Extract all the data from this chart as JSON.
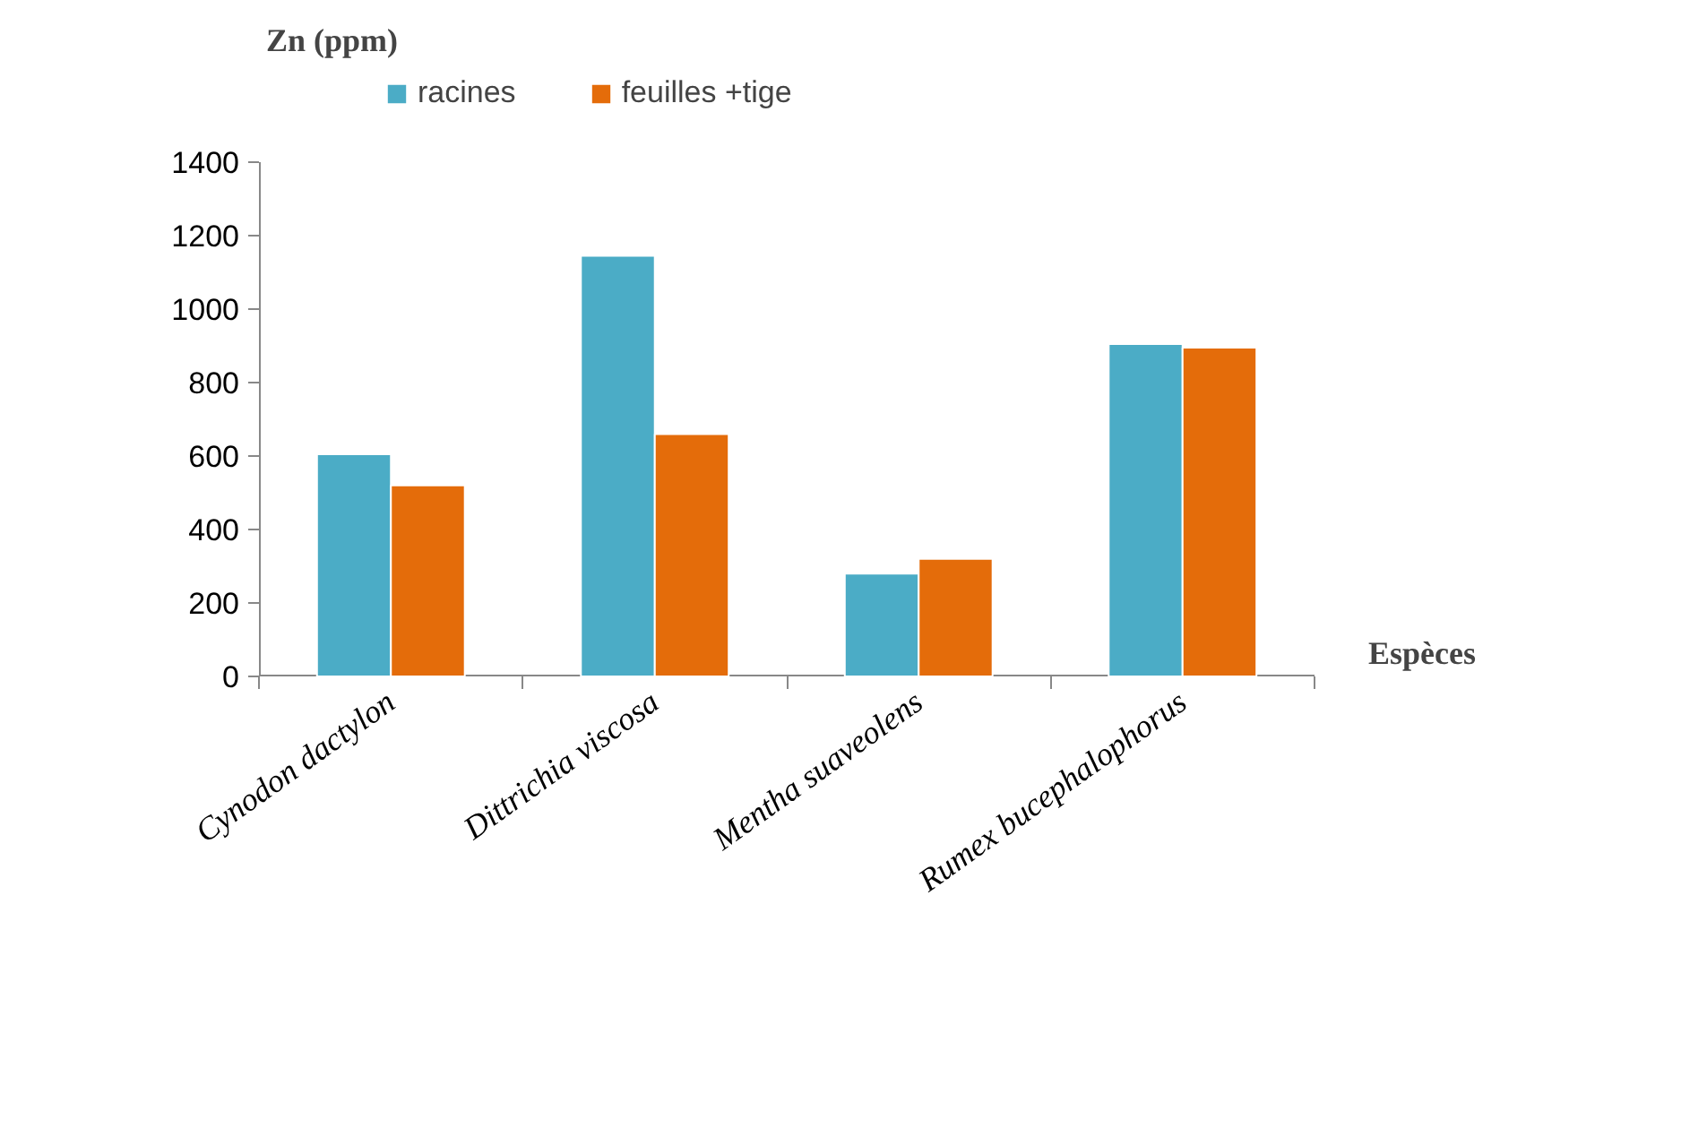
{
  "chart_data": {
    "type": "bar",
    "ylabel": "Zn (ppm)",
    "xlabel": "Espèces",
    "categories": [
      "Cynodon dactylon",
      "Dittrichia viscosa",
      "Mentha suaveolens",
      "Rumex bucephalophorus"
    ],
    "series": [
      {
        "name": "racines",
        "color": "#4bacc6",
        "values": [
          605,
          1145,
          280,
          905
        ]
      },
      {
        "name": "feuilles +tige",
        "color": "#e46c0a",
        "values": [
          520,
          660,
          320,
          895
        ]
      }
    ],
    "ylim": [
      0,
      1400
    ],
    "yticks": [
      0,
      200,
      400,
      600,
      800,
      1000,
      1200,
      1400
    ],
    "grid": false,
    "legend": "top"
  }
}
